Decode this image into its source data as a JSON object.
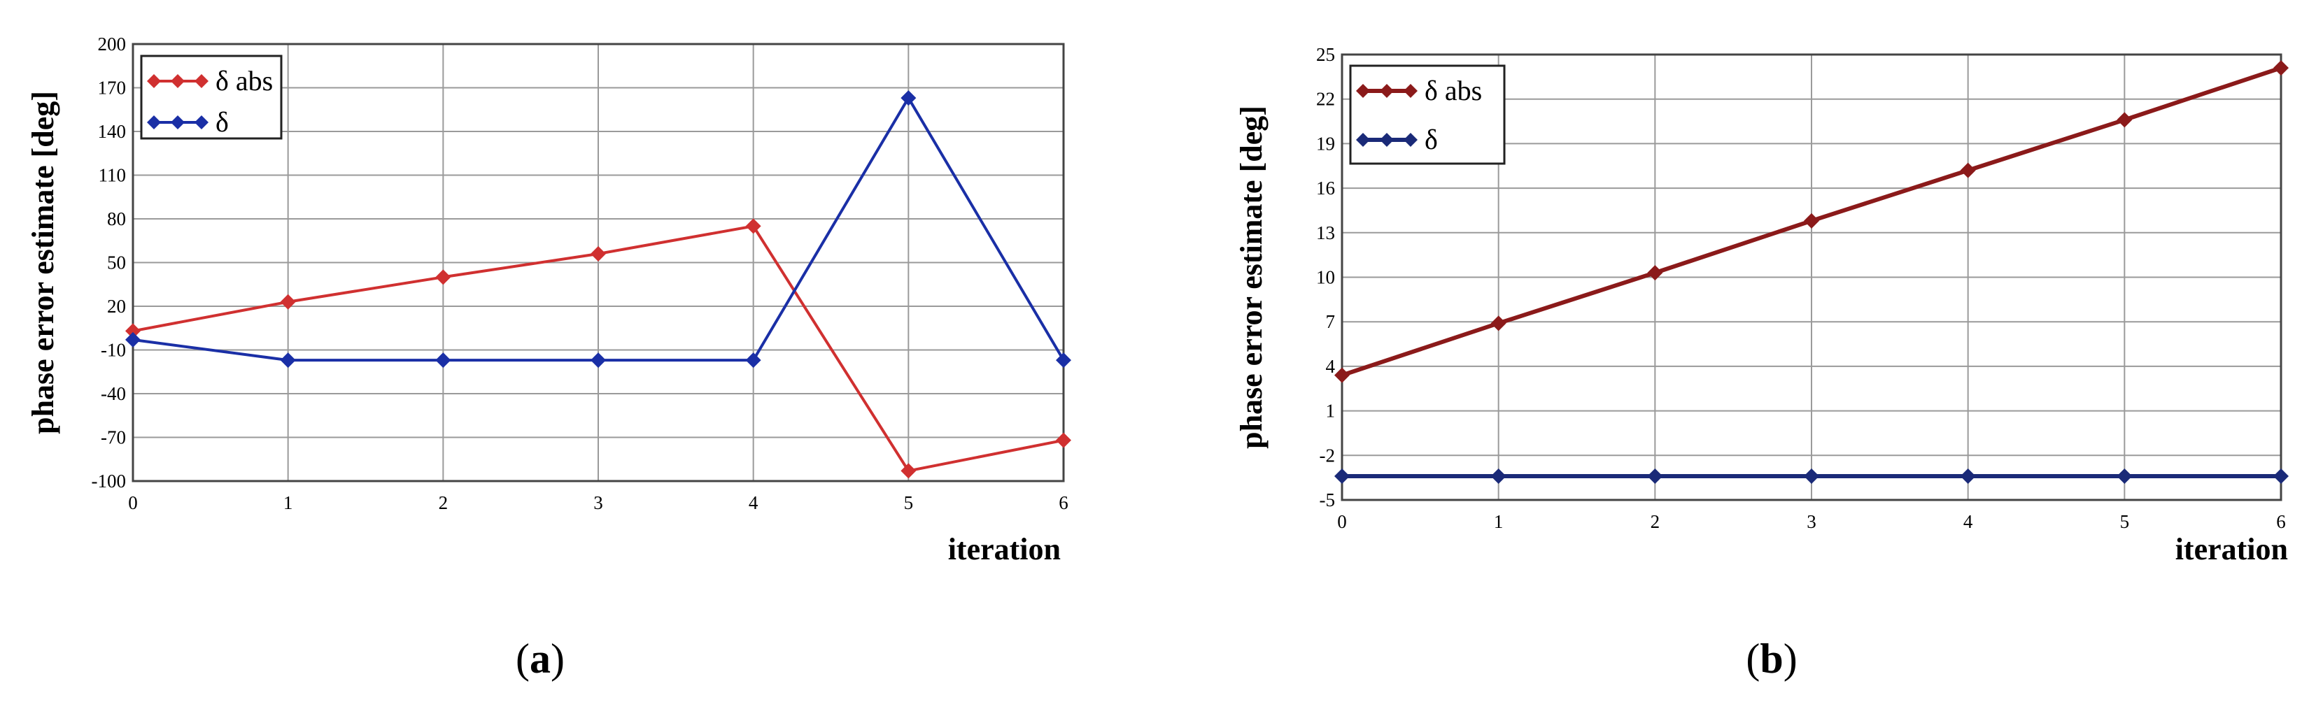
{
  "panels": [
    {
      "label_open": "(",
      "label_letter": "a",
      "label_close": ")"
    },
    {
      "label_open": "(",
      "label_letter": "b",
      "label_close": ")"
    }
  ],
  "chart_data": [
    {
      "type": "line",
      "x": [
        0,
        1,
        2,
        3,
        4,
        5,
        6
      ],
      "xticks": [
        0,
        1,
        2,
        3,
        4,
        5,
        6
      ],
      "yticks": [
        200,
        170,
        140,
        110,
        80,
        50,
        20,
        -10,
        -40,
        -70,
        -100
      ],
      "xlim": [
        0,
        6
      ],
      "ylim": [
        -100,
        200
      ],
      "xlabel": "iteration",
      "ylabel": "phase error estimate [deg]",
      "grid": true,
      "legend_position": "top-left",
      "series": [
        {
          "name": "δ abs",
          "color": "#d03030",
          "values": [
            3,
            23,
            40,
            56,
            75,
            -93,
            -72
          ]
        },
        {
          "name": "δ",
          "color": "#1a2fa6",
          "values": [
            -3,
            -17,
            -17,
            -17,
            -17,
            163,
            -17
          ]
        }
      ]
    },
    {
      "type": "line",
      "x": [
        0,
        1,
        2,
        3,
        4,
        5,
        6
      ],
      "xticks": [
        0,
        1,
        2,
        3,
        4,
        5,
        6
      ],
      "yticks": [
        25,
        22,
        19,
        16,
        13,
        10,
        7,
        4,
        1,
        -2,
        -5
      ],
      "xlim": [
        0,
        6
      ],
      "ylim": [
        -5,
        25
      ],
      "xlabel": "iteration",
      "ylabel": "phase error estimate [deg]",
      "grid": true,
      "legend_position": "top-left",
      "series": [
        {
          "name": "δ abs",
          "color": "#8b1a1a",
          "values": [
            3.4,
            6.9,
            10.3,
            13.8,
            17.2,
            20.6,
            24.1
          ]
        },
        {
          "name": "δ",
          "color": "#1a2a78",
          "values": [
            -3.4,
            -3.4,
            -3.4,
            -3.4,
            -3.4,
            -3.4,
            -3.4
          ]
        }
      ]
    }
  ]
}
